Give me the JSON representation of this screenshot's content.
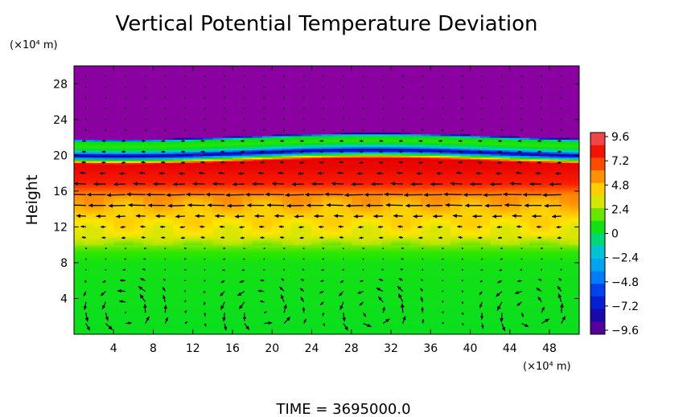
{
  "chart_data": {
    "type": "heatmap",
    "title": "Vertical Potential Temperature Deviation",
    "ylabel": "Height",
    "y_unit": "(×10⁴ m)",
    "x_unit": "(×10⁴ m)",
    "xlim": [
      0,
      51
    ],
    "ylim": [
      0,
      30
    ],
    "x_ticks": [
      4,
      8,
      12,
      16,
      20,
      24,
      28,
      32,
      36,
      40,
      44,
      48
    ],
    "y_ticks": [
      4,
      8,
      12,
      16,
      20,
      24,
      28
    ],
    "colorbar_ticks": [
      "9.6",
      "7.2",
      "4.8",
      "2.4",
      "0",
      "−2.4",
      "−4.8",
      "−7.2",
      "−9.6"
    ],
    "colorbar_range": [
      -9.6,
      9.6
    ],
    "field_profile": [
      {
        "y": 0,
        "value": 0.3
      },
      {
        "y": 8,
        "value": 0.6
      },
      {
        "y": 9.5,
        "value": 1.5
      },
      {
        "y": 11,
        "value": 3.2
      },
      {
        "y": 13.5,
        "value": 4.2
      },
      {
        "y": 15.5,
        "value": 5.4
      },
      {
        "y": 17,
        "value": 7.6
      },
      {
        "y": 19.4,
        "value": 8.4
      },
      {
        "y": 20.0,
        "value": -3.0
      },
      {
        "y": 20.3,
        "value": -9.0
      },
      {
        "y": 20.7,
        "value": -1.5
      },
      {
        "y": 21.3,
        "value": 1.2
      },
      {
        "y": 21.9,
        "value": 0.0
      },
      {
        "y": 22.2,
        "value": -9.6
      },
      {
        "y": 30,
        "value": -9.6
      }
    ],
    "vortex_centers_x": [
      5,
      19,
      30,
      46
    ],
    "jet_level_y": 15.2,
    "time_label": "TIME = 3695000.0"
  }
}
